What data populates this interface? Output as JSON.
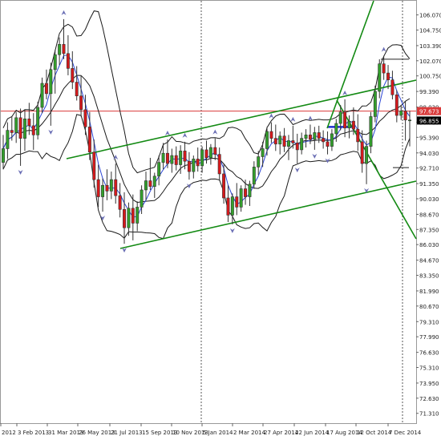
{
  "chart_data": {
    "type": "candlestick",
    "y_axis": {
      "position": "right",
      "range": [
        70.45,
        107.3
      ],
      "ticks": [
        "106.070",
        "104.750",
        "103.390",
        "102.070",
        "100.750",
        "99.390",
        "98.030",
        "96.710",
        "95.390",
        "94.030",
        "92.710",
        "91.350",
        "90.030",
        "88.670",
        "87.350",
        "86.030",
        "84.670",
        "83.350",
        "81.990",
        "80.670",
        "79.310",
        "77.990",
        "76.630",
        "75.310",
        "73.950",
        "72.630",
        "71.310"
      ]
    },
    "x_axis": {
      "ticks": [
        "2012",
        "3 Feb 2013",
        "31 Mar 2013",
        "26 May 2013",
        "21 Jul 2013",
        "15 Sep 2013",
        "10 Nov 2013",
        "5 Jan 2014",
        "2 Mar 2014",
        "27 Apr 2014",
        "22 Jun 2014",
        "17 Aug 2014",
        "12 Oct 2014",
        "7 Dec 2014"
      ]
    },
    "price_labels": {
      "red_line": "97.673",
      "current": "96.855"
    },
    "horizontal_levels": {
      "red": 97.673,
      "top_short": 102.2,
      "mid_short": 92.75
    },
    "candles": [
      {
        "o": 93.2,
        "h": 95.6,
        "l": 92.6,
        "c": 94.4
      },
      {
        "o": 94.4,
        "h": 96.7,
        "l": 93.5,
        "c": 96.0
      },
      {
        "o": 96.0,
        "h": 97.2,
        "l": 95.1,
        "c": 95.8
      },
      {
        "o": 95.8,
        "h": 97.6,
        "l": 94.9,
        "c": 97.1
      },
      {
        "o": 97.1,
        "h": 97.9,
        "l": 92.9,
        "c": 95.3
      },
      {
        "o": 95.3,
        "h": 97.8,
        "l": 94.2,
        "c": 97.0
      },
      {
        "o": 97.0,
        "h": 98.4,
        "l": 95.6,
        "c": 96.4
      },
      {
        "o": 96.4,
        "h": 97.5,
        "l": 94.3,
        "c": 95.6
      },
      {
        "o": 95.6,
        "h": 98.5,
        "l": 95.2,
        "c": 98.0
      },
      {
        "o": 98.0,
        "h": 100.6,
        "l": 97.5,
        "c": 100.1
      },
      {
        "o": 100.1,
        "h": 101.3,
        "l": 98.7,
        "c": 99.2
      },
      {
        "o": 99.2,
        "h": 101.9,
        "l": 96.4,
        "c": 101.3
      },
      {
        "o": 101.3,
        "h": 103.0,
        "l": 99.2,
        "c": 102.6
      },
      {
        "o": 102.6,
        "h": 104.1,
        "l": 101.7,
        "c": 103.5
      },
      {
        "o": 103.5,
        "h": 105.7,
        "l": 102.2,
        "c": 102.7
      },
      {
        "o": 102.7,
        "h": 104.3,
        "l": 100.8,
        "c": 101.4
      },
      {
        "o": 101.4,
        "h": 102.9,
        "l": 99.6,
        "c": 100.2
      },
      {
        "o": 100.2,
        "h": 101.6,
        "l": 98.6,
        "c": 99.0
      },
      {
        "o": 99.0,
        "h": 100.8,
        "l": 97.2,
        "c": 97.8
      },
      {
        "o": 97.8,
        "h": 99.1,
        "l": 95.6,
        "c": 96.3
      },
      {
        "o": 96.3,
        "h": 97.6,
        "l": 93.4,
        "c": 94.1
      },
      {
        "o": 94.1,
        "h": 95.2,
        "l": 91.0,
        "c": 91.7
      },
      {
        "o": 91.7,
        "h": 93.0,
        "l": 89.3,
        "c": 90.2
      },
      {
        "o": 90.2,
        "h": 91.8,
        "l": 88.9,
        "c": 91.2
      },
      {
        "o": 91.2,
        "h": 92.6,
        "l": 89.9,
        "c": 90.7
      },
      {
        "o": 90.7,
        "h": 92.4,
        "l": 90.0,
        "c": 91.7
      },
      {
        "o": 91.7,
        "h": 93.1,
        "l": 89.6,
        "c": 90.3
      },
      {
        "o": 90.3,
        "h": 91.4,
        "l": 88.4,
        "c": 89.1
      },
      {
        "o": 89.1,
        "h": 90.6,
        "l": 86.1,
        "c": 87.5
      },
      {
        "o": 87.5,
        "h": 89.7,
        "l": 86.8,
        "c": 89.2
      },
      {
        "o": 89.2,
        "h": 90.4,
        "l": 86.4,
        "c": 87.9
      },
      {
        "o": 87.9,
        "h": 89.8,
        "l": 87.2,
        "c": 89.3
      },
      {
        "o": 89.3,
        "h": 91.2,
        "l": 88.7,
        "c": 90.8
      },
      {
        "o": 90.8,
        "h": 92.4,
        "l": 89.9,
        "c": 91.6
      },
      {
        "o": 91.6,
        "h": 93.6,
        "l": 90.8,
        "c": 91.1
      },
      {
        "o": 91.1,
        "h": 92.3,
        "l": 90.1,
        "c": 92.0
      },
      {
        "o": 92.0,
        "h": 93.8,
        "l": 91.2,
        "c": 93.2
      },
      {
        "o": 93.2,
        "h": 94.9,
        "l": 92.6,
        "c": 94.0
      },
      {
        "o": 94.0,
        "h": 95.2,
        "l": 92.7,
        "c": 93.1
      },
      {
        "o": 93.1,
        "h": 94.4,
        "l": 92.3,
        "c": 93.8
      },
      {
        "o": 93.8,
        "h": 94.6,
        "l": 92.5,
        "c": 93.0
      },
      {
        "o": 93.0,
        "h": 94.7,
        "l": 92.2,
        "c": 94.2
      },
      {
        "o": 94.2,
        "h": 95.0,
        "l": 92.6,
        "c": 93.3
      },
      {
        "o": 93.3,
        "h": 94.1,
        "l": 91.7,
        "c": 92.4
      },
      {
        "o": 92.4,
        "h": 93.8,
        "l": 91.8,
        "c": 93.5
      },
      {
        "o": 93.5,
        "h": 94.5,
        "l": 92.4,
        "c": 92.9
      },
      {
        "o": 92.9,
        "h": 94.6,
        "l": 92.3,
        "c": 94.3
      },
      {
        "o": 94.3,
        "h": 95.1,
        "l": 93.1,
        "c": 93.6
      },
      {
        "o": 93.6,
        "h": 94.8,
        "l": 93.0,
        "c": 94.5
      },
      {
        "o": 94.5,
        "h": 95.3,
        "l": 93.4,
        "c": 93.9
      },
      {
        "o": 93.9,
        "h": 94.5,
        "l": 91.6,
        "c": 92.2
      },
      {
        "o": 92.2,
        "h": 93.0,
        "l": 89.6,
        "c": 90.1
      },
      {
        "o": 90.1,
        "h": 91.2,
        "l": 88.0,
        "c": 88.6
      },
      {
        "o": 88.6,
        "h": 90.5,
        "l": 87.8,
        "c": 90.2
      },
      {
        "o": 90.2,
        "h": 91.4,
        "l": 88.6,
        "c": 89.3
      },
      {
        "o": 89.3,
        "h": 91.2,
        "l": 88.9,
        "c": 90.9
      },
      {
        "o": 90.9,
        "h": 91.7,
        "l": 89.5,
        "c": 90.2
      },
      {
        "o": 90.2,
        "h": 91.6,
        "l": 89.4,
        "c": 91.3
      },
      {
        "o": 91.3,
        "h": 93.3,
        "l": 90.9,
        "c": 92.8
      },
      {
        "o": 92.8,
        "h": 94.2,
        "l": 92.1,
        "c": 93.7
      },
      {
        "o": 93.7,
        "h": 95.0,
        "l": 92.8,
        "c": 94.4
      },
      {
        "o": 94.4,
        "h": 96.3,
        "l": 93.8,
        "c": 95.9
      },
      {
        "o": 95.9,
        "h": 96.7,
        "l": 94.9,
        "c": 95.3
      },
      {
        "o": 95.3,
        "h": 96.5,
        "l": 94.2,
        "c": 94.8
      },
      {
        "o": 94.8,
        "h": 95.9,
        "l": 93.9,
        "c": 95.5
      },
      {
        "o": 95.5,
        "h": 96.2,
        "l": 94.1,
        "c": 94.6
      },
      {
        "o": 94.6,
        "h": 95.6,
        "l": 93.4,
        "c": 95.1
      },
      {
        "o": 95.1,
        "h": 96.4,
        "l": 94.4,
        "c": 94.9
      },
      {
        "o": 94.9,
        "h": 95.7,
        "l": 93.1,
        "c": 94.3
      },
      {
        "o": 94.3,
        "h": 95.8,
        "l": 93.9,
        "c": 95.3
      },
      {
        "o": 95.3,
        "h": 96.1,
        "l": 94.5,
        "c": 95.6
      },
      {
        "o": 95.6,
        "h": 96.5,
        "l": 94.8,
        "c": 95.2
      },
      {
        "o": 95.2,
        "h": 96.3,
        "l": 94.3,
        "c": 95.8
      },
      {
        "o": 95.8,
        "h": 96.4,
        "l": 94.9,
        "c": 95.3
      },
      {
        "o": 95.3,
        "h": 96.0,
        "l": 94.4,
        "c": 95.0
      },
      {
        "o": 95.0,
        "h": 95.9,
        "l": 93.9,
        "c": 94.6
      },
      {
        "o": 94.6,
        "h": 96.1,
        "l": 94.2,
        "c": 95.7
      },
      {
        "o": 95.7,
        "h": 97.0,
        "l": 95.0,
        "c": 96.6
      },
      {
        "o": 96.6,
        "h": 98.2,
        "l": 96.0,
        "c": 97.6
      },
      {
        "o": 97.6,
        "h": 98.7,
        "l": 95.4,
        "c": 96.2
      },
      {
        "o": 96.2,
        "h": 97.3,
        "l": 95.3,
        "c": 96.8
      },
      {
        "o": 96.8,
        "h": 98.0,
        "l": 95.6,
        "c": 96.1
      },
      {
        "o": 96.1,
        "h": 97.4,
        "l": 94.2,
        "c": 95.0
      },
      {
        "o": 95.0,
        "h": 96.0,
        "l": 92.3,
        "c": 93.1
      },
      {
        "o": 93.1,
        "h": 95.1,
        "l": 91.3,
        "c": 94.6
      },
      {
        "o": 94.6,
        "h": 97.6,
        "l": 94.0,
        "c": 97.2
      },
      {
        "o": 97.2,
        "h": 99.9,
        "l": 96.7,
        "c": 99.4
      },
      {
        "o": 99.4,
        "h": 102.2,
        "l": 98.8,
        "c": 101.8
      },
      {
        "o": 101.8,
        "h": 102.5,
        "l": 100.4,
        "c": 101.0
      },
      {
        "o": 101.0,
        "h": 101.7,
        "l": 99.6,
        "c": 100.4
      },
      {
        "o": 100.4,
        "h": 101.2,
        "l": 98.7,
        "c": 99.1
      },
      {
        "o": 99.1,
        "h": 99.5,
        "l": 96.7,
        "c": 97.3
      },
      {
        "o": 97.3,
        "h": 98.2,
        "l": 96.9,
        "c": 97.7
      },
      {
        "o": 97.7,
        "h": 98.5,
        "l": 95.1,
        "c": 96.9
      },
      {
        "o": 96.9,
        "h": 97.7,
        "l": 94.6,
        "c": 96.9
      }
    ],
    "colors": {
      "up": "#33a02c",
      "down": "#d7191c",
      "bollinger": "#1a1a1a",
      "ma": "#2b45d6",
      "channel": "#138a13",
      "red_level": "#d93a3a",
      "blue_level": "#1f2fd0",
      "fractal": "#6b6fb5",
      "grid_sep": "#555555",
      "axis_text": "#222222"
    }
  }
}
